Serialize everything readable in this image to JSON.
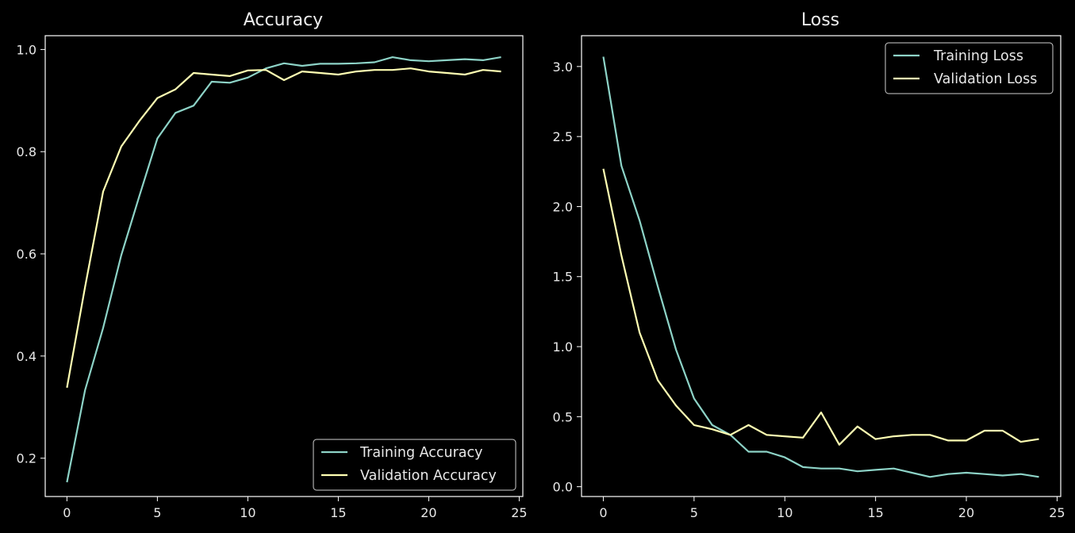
{
  "chart_data": [
    {
      "type": "line",
      "title": "Accuracy",
      "xlabel": "",
      "ylabel": "",
      "xlim": [
        -1.2,
        25.2
      ],
      "ylim": [
        0.125,
        1.027
      ],
      "xticks": [
        0,
        5,
        10,
        15,
        20,
        25
      ],
      "yticks": [
        0.2,
        0.4,
        0.6,
        0.8,
        1.0
      ],
      "ytick_labels": [
        "0.2",
        "0.4",
        "0.6",
        "0.8",
        "1.0"
      ],
      "legend_position": "lower-right",
      "x": [
        0,
        1,
        2,
        3,
        4,
        5,
        6,
        7,
        8,
        9,
        10,
        11,
        12,
        13,
        14,
        15,
        16,
        17,
        18,
        19,
        20,
        21,
        22,
        23,
        24
      ],
      "series": [
        {
          "name": "Training Accuracy",
          "color": "#8dd3c7",
          "values": [
            0.153,
            0.333,
            0.455,
            0.597,
            0.713,
            0.826,
            0.876,
            0.89,
            0.937,
            0.935,
            0.945,
            0.963,
            0.973,
            0.968,
            0.972,
            0.972,
            0.973,
            0.975,
            0.985,
            0.979,
            0.977,
            0.979,
            0.981,
            0.979,
            0.985
          ]
        },
        {
          "name": "Validation Accuracy",
          "color": "#ffffb3",
          "values": [
            0.338,
            0.535,
            0.722,
            0.81,
            0.86,
            0.905,
            0.922,
            0.954,
            0.951,
            0.948,
            0.959,
            0.96,
            0.94,
            0.957,
            0.954,
            0.951,
            0.957,
            0.96,
            0.96,
            0.963,
            0.957,
            0.954,
            0.951,
            0.96,
            0.957
          ]
        }
      ]
    },
    {
      "type": "line",
      "title": "Loss",
      "xlabel": "",
      "ylabel": "",
      "xlim": [
        -1.2,
        25.2
      ],
      "ylim": [
        -0.07,
        3.22
      ],
      "xticks": [
        0,
        5,
        10,
        15,
        20,
        25
      ],
      "yticks": [
        0.0,
        0.5,
        1.0,
        1.5,
        2.0,
        2.5,
        3.0
      ],
      "ytick_labels": [
        "0.0",
        "0.5",
        "1.0",
        "1.5",
        "2.0",
        "2.5",
        "3.0"
      ],
      "legend_position": "upper-right",
      "x": [
        0,
        1,
        2,
        3,
        4,
        5,
        6,
        7,
        8,
        9,
        10,
        11,
        12,
        13,
        14,
        15,
        16,
        17,
        18,
        19,
        20,
        21,
        22,
        23,
        24
      ],
      "series": [
        {
          "name": "Training Loss",
          "color": "#8dd3c7",
          "values": [
            3.07,
            2.29,
            1.9,
            1.43,
            0.98,
            0.63,
            0.44,
            0.37,
            0.25,
            0.25,
            0.21,
            0.14,
            0.13,
            0.13,
            0.11,
            0.12,
            0.13,
            0.1,
            0.07,
            0.09,
            0.1,
            0.09,
            0.08,
            0.09,
            0.07
          ]
        },
        {
          "name": "Validation Loss",
          "color": "#ffffb3",
          "values": [
            2.27,
            1.65,
            1.1,
            0.76,
            0.58,
            0.44,
            0.41,
            0.37,
            0.44,
            0.37,
            0.36,
            0.35,
            0.53,
            0.3,
            0.43,
            0.34,
            0.36,
            0.37,
            0.37,
            0.33,
            0.33,
            0.4,
            0.4,
            0.32,
            0.34
          ]
        }
      ]
    }
  ]
}
